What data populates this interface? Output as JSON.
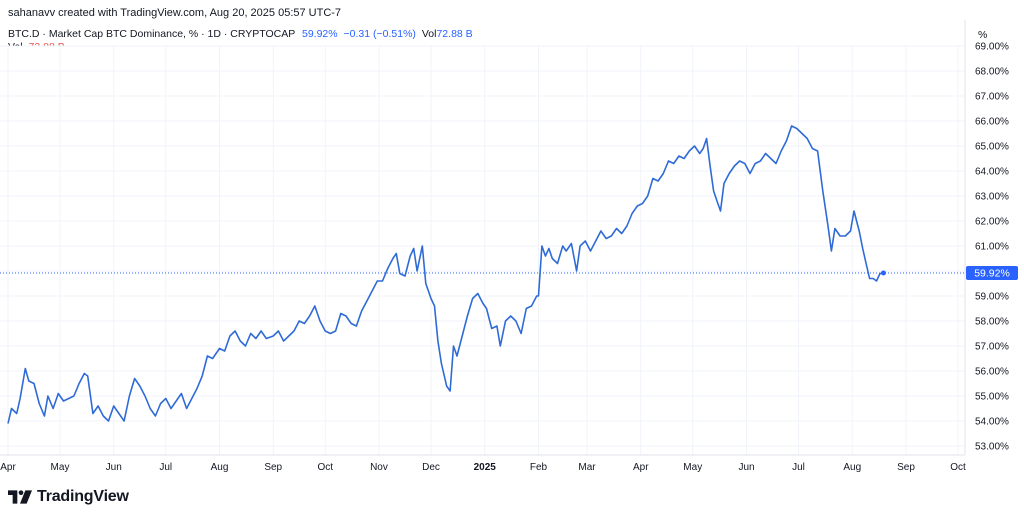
{
  "attribution": "sahanavv created with TradingView.com, Aug 20, 2025 05:57 UTC-7",
  "legend": {
    "symbol": "BTC.D · Market Cap BTC Dominance, % · 1D · CRYPTOCAP",
    "last": "59.92%",
    "change": "−0.31 (−0.51%)",
    "vol_label": "Vol",
    "vol_value": "72.88 B",
    "vol2_label": "Vol",
    "vol2_value": "72.88 B"
  },
  "axis_unit": "%",
  "brand": "TradingView",
  "colors": {
    "line": "#2f6bd6",
    "price_tag": "#2962ff",
    "vol_text": "#ef5350",
    "grid": "#f0f3fa"
  },
  "chart_data": {
    "type": "line",
    "title": "BTC.D · Market Cap BTC Dominance, % · 1D · CRYPTOCAP",
    "xlabel": "",
    "ylabel": "",
    "ylim": [
      52.5,
      69.0
    ],
    "grid": true,
    "y_ticks": [
      "53.00%",
      "54.00%",
      "55.00%",
      "56.00%",
      "57.00%",
      "58.00%",
      "59.00%",
      "60.00%",
      "61.00%",
      "62.00%",
      "63.00%",
      "64.00%",
      "65.00%",
      "66.00%",
      "67.00%",
      "68.00%",
      "69.00%"
    ],
    "y_tick_values": [
      53,
      54,
      55,
      56,
      57,
      58,
      59,
      60,
      61,
      62,
      63,
      64,
      65,
      66,
      67,
      68,
      69
    ],
    "x_tick_labels": [
      "Apr",
      "May",
      "Jun",
      "Jul",
      "Aug",
      "Sep",
      "Oct",
      "Nov",
      "Dec",
      "2025",
      "Feb",
      "Mar",
      "Apr",
      "May",
      "Jun",
      "Jul",
      "Aug",
      "Sep",
      "Oct"
    ],
    "x_tick_dates": [
      "2024-04-01",
      "2024-05-01",
      "2024-06-01",
      "2024-07-01",
      "2024-08-01",
      "2024-09-01",
      "2024-10-01",
      "2024-11-01",
      "2024-12-01",
      "2025-01-01",
      "2025-02-01",
      "2025-03-01",
      "2025-04-01",
      "2025-05-01",
      "2025-06-01",
      "2025-07-01",
      "2025-08-01",
      "2025-09-01",
      "2025-10-01"
    ],
    "last_value_label": "59.92%",
    "last_value": 59.92,
    "series": [
      {
        "points": [
          [
            "2024-04-01",
            53.9
          ],
          [
            "2024-04-03",
            54.5
          ],
          [
            "2024-04-06",
            54.3
          ],
          [
            "2024-04-08",
            54.9
          ],
          [
            "2024-04-11",
            56.1
          ],
          [
            "2024-04-13",
            55.6
          ],
          [
            "2024-04-16",
            55.5
          ],
          [
            "2024-04-19",
            54.7
          ],
          [
            "2024-04-22",
            54.2
          ],
          [
            "2024-04-24",
            55.0
          ],
          [
            "2024-04-27",
            54.5
          ],
          [
            "2024-04-30",
            55.1
          ],
          [
            "2024-05-03",
            54.8
          ],
          [
            "2024-05-06",
            54.9
          ],
          [
            "2024-05-09",
            55.0
          ],
          [
            "2024-05-12",
            55.5
          ],
          [
            "2024-05-15",
            55.9
          ],
          [
            "2024-05-17",
            55.8
          ],
          [
            "2024-05-20",
            54.3
          ],
          [
            "2024-05-23",
            54.6
          ],
          [
            "2024-05-26",
            54.2
          ],
          [
            "2024-05-29",
            54.0
          ],
          [
            "2024-06-01",
            54.6
          ],
          [
            "2024-06-04",
            54.3
          ],
          [
            "2024-06-07",
            54.0
          ],
          [
            "2024-06-10",
            55.0
          ],
          [
            "2024-06-13",
            55.7
          ],
          [
            "2024-06-16",
            55.4
          ],
          [
            "2024-06-19",
            55.0
          ],
          [
            "2024-06-22",
            54.5
          ],
          [
            "2024-06-25",
            54.2
          ],
          [
            "2024-06-28",
            54.7
          ],
          [
            "2024-07-01",
            54.9
          ],
          [
            "2024-07-04",
            54.5
          ],
          [
            "2024-07-07",
            54.8
          ],
          [
            "2024-07-10",
            55.1
          ],
          [
            "2024-07-13",
            54.5
          ],
          [
            "2024-07-16",
            54.9
          ],
          [
            "2024-07-19",
            55.3
          ],
          [
            "2024-07-22",
            55.8
          ],
          [
            "2024-07-25",
            56.6
          ],
          [
            "2024-07-28",
            56.5
          ],
          [
            "2024-08-01",
            56.9
          ],
          [
            "2024-08-04",
            56.8
          ],
          [
            "2024-08-07",
            57.4
          ],
          [
            "2024-08-10",
            57.6
          ],
          [
            "2024-08-13",
            57.2
          ],
          [
            "2024-08-16",
            57.0
          ],
          [
            "2024-08-19",
            57.5
          ],
          [
            "2024-08-22",
            57.3
          ],
          [
            "2024-08-25",
            57.6
          ],
          [
            "2024-08-28",
            57.3
          ],
          [
            "2024-09-01",
            57.4
          ],
          [
            "2024-09-04",
            57.6
          ],
          [
            "2024-09-07",
            57.2
          ],
          [
            "2024-09-10",
            57.4
          ],
          [
            "2024-09-13",
            57.6
          ],
          [
            "2024-09-16",
            58.0
          ],
          [
            "2024-09-19",
            57.9
          ],
          [
            "2024-09-22",
            58.2
          ],
          [
            "2024-09-25",
            58.6
          ],
          [
            "2024-09-28",
            58.0
          ],
          [
            "2024-10-01",
            57.6
          ],
          [
            "2024-10-04",
            57.5
          ],
          [
            "2024-10-07",
            57.6
          ],
          [
            "2024-10-10",
            58.3
          ],
          [
            "2024-10-13",
            58.2
          ],
          [
            "2024-10-16",
            57.9
          ],
          [
            "2024-10-19",
            57.8
          ],
          [
            "2024-10-22",
            58.4
          ],
          [
            "2024-10-25",
            58.8
          ],
          [
            "2024-10-28",
            59.2
          ],
          [
            "2024-10-31",
            59.6
          ],
          [
            "2024-11-03",
            59.6
          ],
          [
            "2024-11-06",
            60.1
          ],
          [
            "2024-11-09",
            60.5
          ],
          [
            "2024-11-11",
            60.7
          ],
          [
            "2024-11-13",
            59.9
          ],
          [
            "2024-11-16",
            59.8
          ],
          [
            "2024-11-19",
            60.6
          ],
          [
            "2024-11-21",
            60.9
          ],
          [
            "2024-11-23",
            60.0
          ],
          [
            "2024-11-26",
            61.0
          ],
          [
            "2024-11-28",
            59.5
          ],
          [
            "2024-12-01",
            58.9
          ],
          [
            "2024-12-03",
            58.6
          ],
          [
            "2024-12-05",
            57.2
          ],
          [
            "2024-12-07",
            56.3
          ],
          [
            "2024-12-09",
            55.7
          ],
          [
            "2024-12-10",
            55.4
          ],
          [
            "2024-12-12",
            55.2
          ],
          [
            "2024-12-14",
            57.0
          ],
          [
            "2024-12-16",
            56.6
          ],
          [
            "2024-12-19",
            57.4
          ],
          [
            "2024-12-22",
            58.2
          ],
          [
            "2024-12-25",
            58.9
          ],
          [
            "2024-12-28",
            59.1
          ],
          [
            "2024-12-31",
            58.7
          ],
          [
            "2025-01-02",
            58.5
          ],
          [
            "2025-01-05",
            57.7
          ],
          [
            "2025-01-08",
            57.8
          ],
          [
            "2025-01-10",
            57.0
          ],
          [
            "2025-01-13",
            58.0
          ],
          [
            "2025-01-16",
            58.2
          ],
          [
            "2025-01-19",
            58.0
          ],
          [
            "2025-01-22",
            57.5
          ],
          [
            "2025-01-25",
            58.5
          ],
          [
            "2025-01-28",
            58.6
          ],
          [
            "2025-01-31",
            59.0
          ],
          [
            "2025-02-01",
            59.0
          ],
          [
            "2025-02-03",
            61.0
          ],
          [
            "2025-02-05",
            60.6
          ],
          [
            "2025-02-07",
            60.9
          ],
          [
            "2025-02-09",
            60.5
          ],
          [
            "2025-02-12",
            60.3
          ],
          [
            "2025-02-15",
            61.0
          ],
          [
            "2025-02-17",
            60.8
          ],
          [
            "2025-02-20",
            61.1
          ],
          [
            "2025-02-23",
            60.0
          ],
          [
            "2025-02-25",
            61.0
          ],
          [
            "2025-02-28",
            61.2
          ],
          [
            "2025-03-03",
            60.8
          ],
          [
            "2025-03-06",
            61.2
          ],
          [
            "2025-03-09",
            61.6
          ],
          [
            "2025-03-12",
            61.3
          ],
          [
            "2025-03-15",
            61.4
          ],
          [
            "2025-03-18",
            61.7
          ],
          [
            "2025-03-21",
            61.5
          ],
          [
            "2025-03-24",
            61.8
          ],
          [
            "2025-03-27",
            62.3
          ],
          [
            "2025-03-30",
            62.6
          ],
          [
            "2025-04-02",
            62.7
          ],
          [
            "2025-04-05",
            63.0
          ],
          [
            "2025-04-08",
            63.7
          ],
          [
            "2025-04-11",
            63.6
          ],
          [
            "2025-04-14",
            63.9
          ],
          [
            "2025-04-17",
            64.4
          ],
          [
            "2025-04-20",
            64.3
          ],
          [
            "2025-04-23",
            64.6
          ],
          [
            "2025-04-26",
            64.5
          ],
          [
            "2025-04-29",
            64.8
          ],
          [
            "2025-05-02",
            65.0
          ],
          [
            "2025-05-05",
            64.7
          ],
          [
            "2025-05-07",
            64.9
          ],
          [
            "2025-05-09",
            65.3
          ],
          [
            "2025-05-11",
            64.2
          ],
          [
            "2025-05-13",
            63.2
          ],
          [
            "2025-05-15",
            62.8
          ],
          [
            "2025-05-17",
            62.4
          ],
          [
            "2025-05-19",
            63.5
          ],
          [
            "2025-05-22",
            63.9
          ],
          [
            "2025-05-25",
            64.2
          ],
          [
            "2025-05-28",
            64.4
          ],
          [
            "2025-05-31",
            64.3
          ],
          [
            "2025-06-03",
            63.9
          ],
          [
            "2025-06-06",
            64.3
          ],
          [
            "2025-06-09",
            64.4
          ],
          [
            "2025-06-12",
            64.7
          ],
          [
            "2025-06-15",
            64.5
          ],
          [
            "2025-06-18",
            64.3
          ],
          [
            "2025-06-21",
            64.8
          ],
          [
            "2025-06-24",
            65.2
          ],
          [
            "2025-06-27",
            65.8
          ],
          [
            "2025-06-30",
            65.7
          ],
          [
            "2025-07-03",
            65.5
          ],
          [
            "2025-07-06",
            65.3
          ],
          [
            "2025-07-09",
            64.9
          ],
          [
            "2025-07-12",
            64.8
          ],
          [
            "2025-07-15",
            63.2
          ],
          [
            "2025-07-18",
            61.8
          ],
          [
            "2025-07-20",
            60.8
          ],
          [
            "2025-07-22",
            61.7
          ],
          [
            "2025-07-25",
            61.4
          ],
          [
            "2025-07-28",
            61.4
          ],
          [
            "2025-07-31",
            61.6
          ],
          [
            "2025-08-02",
            62.4
          ],
          [
            "2025-08-05",
            61.6
          ],
          [
            "2025-08-07",
            60.9
          ],
          [
            "2025-08-09",
            60.3
          ],
          [
            "2025-08-11",
            59.7
          ],
          [
            "2025-08-13",
            59.7
          ],
          [
            "2025-08-15",
            59.6
          ],
          [
            "2025-08-17",
            59.9
          ],
          [
            "2025-08-19",
            59.92
          ]
        ]
      }
    ]
  }
}
